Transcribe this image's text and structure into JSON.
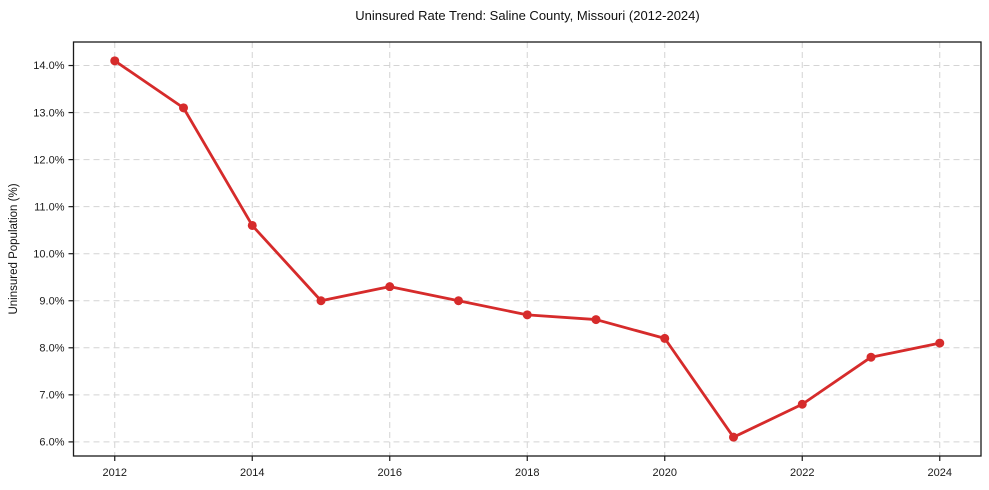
{
  "chart_data": {
    "type": "line",
    "title": "Uninsured Rate Trend: Saline County, Missouri (2012-2024)",
    "xlabel": "",
    "ylabel": "Uninsured Population (%)",
    "x": [
      2012,
      2013,
      2014,
      2015,
      2016,
      2017,
      2018,
      2019,
      2020,
      2021,
      2022,
      2023,
      2024
    ],
    "values": [
      14.1,
      13.1,
      10.6,
      9.0,
      9.3,
      9.0,
      8.7,
      8.6,
      8.2,
      6.1,
      6.8,
      7.8,
      8.1
    ],
    "xlim": [
      2011.4,
      2024.6
    ],
    "ylim": [
      5.7,
      14.5
    ],
    "x_ticks": [
      2012,
      2014,
      2016,
      2018,
      2020,
      2022,
      2024
    ],
    "x_tick_labels": [
      "2012",
      "2014",
      "2016",
      "2018",
      "2020",
      "2022",
      "2024"
    ],
    "y_ticks": [
      6,
      7,
      8,
      9,
      10,
      11,
      12,
      13,
      14
    ],
    "y_tick_labels": [
      "6.0%",
      "7.0%",
      "8.0%",
      "9.0%",
      "10.0%",
      "11.0%",
      "12.0%",
      "13.0%",
      "14.0%"
    ],
    "grid": true,
    "grid_style": "dashed",
    "legend": "none",
    "colors": {
      "line": "#d62b2b",
      "marker": "#d62b2b",
      "grid": "#d4d4d4",
      "frame": "#1a1a1a",
      "text": "#1a1a1a",
      "background": "#ffffff"
    }
  }
}
